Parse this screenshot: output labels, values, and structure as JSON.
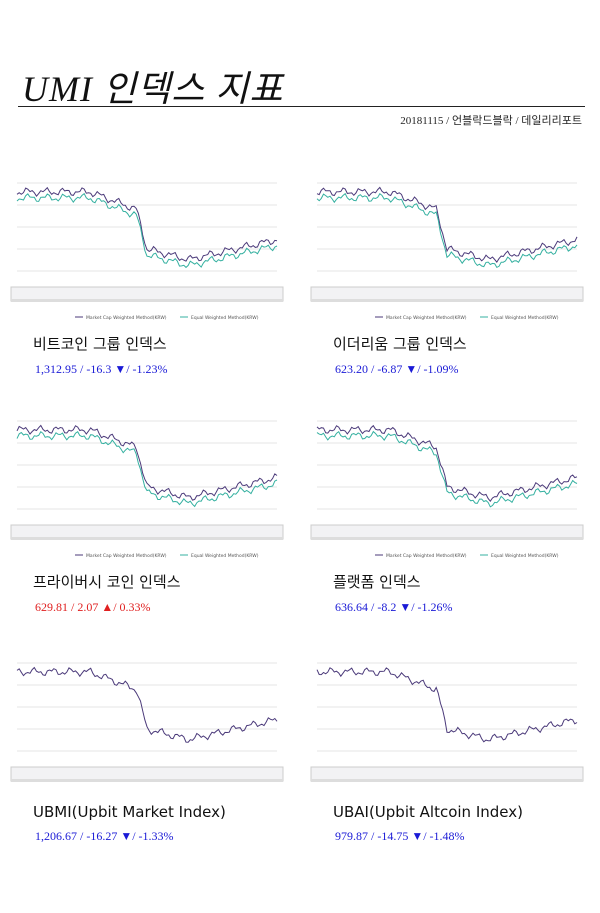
{
  "header": {
    "title": "UMI 인덱스 지표",
    "subtitle": "20181115 / 언블락드블락 / 데일리리포트"
  },
  "panels": [
    {
      "name": "비트코인 그룹 인덱스",
      "summary": "1,312.95 / -16.3 ▼/ -1.23%",
      "color": "#1a1ad6",
      "legend": [
        "Market Cap Weighted Method(KRW)",
        "Equal Weighted Method(KRW)"
      ]
    },
    {
      "name": "이더리움 그룹 인덱스",
      "summary": "623.20 / -6.87 ▼/ -1.09%",
      "color": "#1a1ad6",
      "legend": [
        "Market Cap Weighted Method(KRW)",
        "Equal Weighted Method(KRW)"
      ]
    },
    {
      "name": "프라이버시 코인 인덱스",
      "summary": "629.81 / 2.07 ▲/ 0.33%",
      "color": "#e02020",
      "legend": [
        "Market Cap Weighted Method(KRW)",
        "Equal Weighted Method(KRW)"
      ]
    },
    {
      "name": "플랫폼 인덱스",
      "summary": "636.64 / -8.2 ▼/ -1.26%",
      "color": "#1a1ad6",
      "legend": [
        "Market Cap Weighted Method(KRW)",
        "Equal Weighted Method(KRW)"
      ]
    },
    {
      "name": "UBMI(Upbit Market Index)",
      "summary": "1,206.67 / -16.27 ▼/ -1.33%",
      "color": "#1a1ad6",
      "legend": []
    },
    {
      "name": "UBAI(Upbit Altcoin Index)",
      "summary": "979.87 / -14.75 ▼/ -1.48%",
      "color": "#1a1ad6",
      "legend": []
    }
  ]
}
